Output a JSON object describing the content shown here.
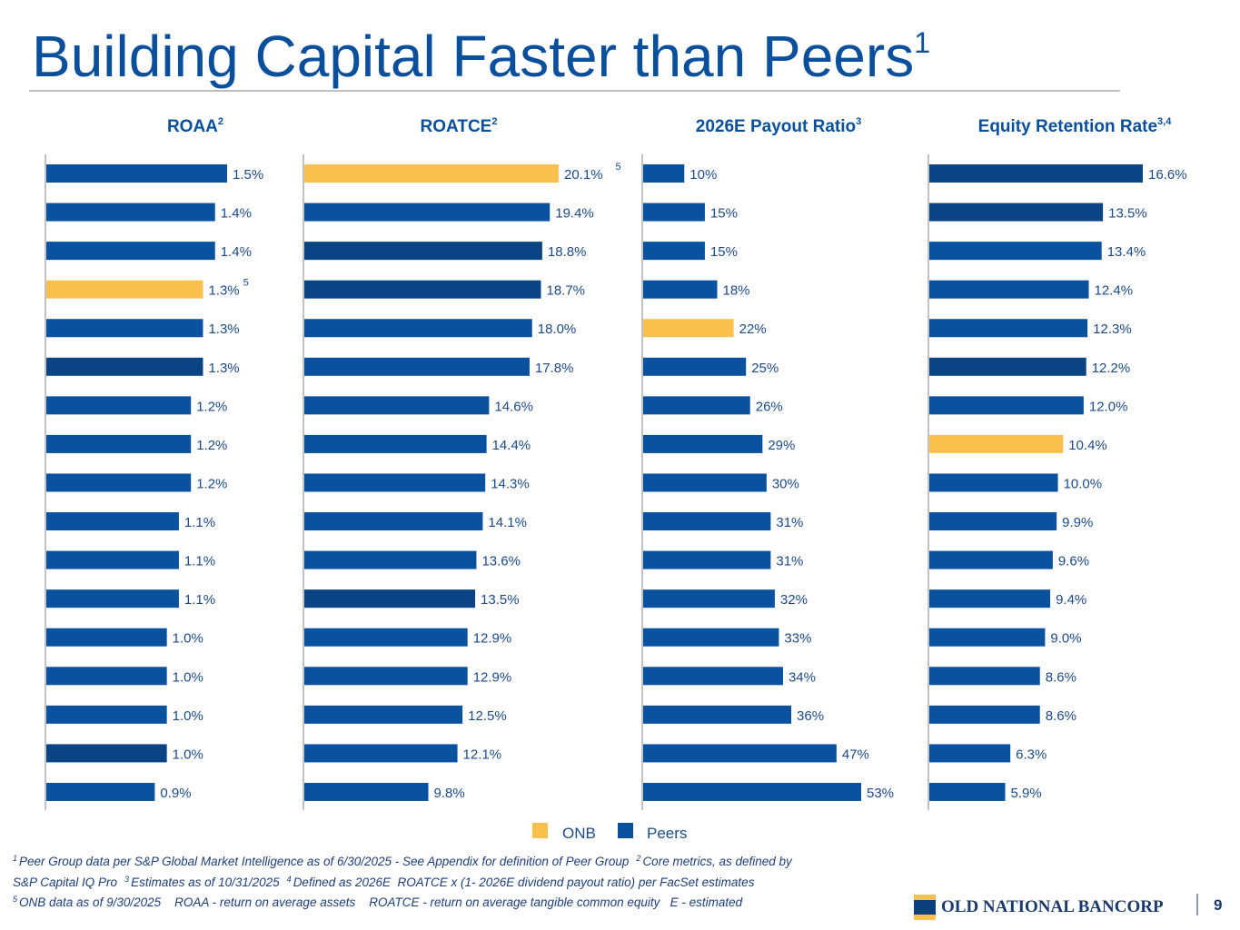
{
  "header": {
    "title": "Building Capital Faster than Peers",
    "title_note": "1"
  },
  "chart_data": [
    {
      "type": "bar",
      "orientation": "horizontal",
      "title": "ROAA",
      "title_note": "2",
      "values": [
        1.5,
        1.4,
        1.4,
        1.3,
        1.3,
        1.3,
        1.2,
        1.2,
        1.2,
        1.1,
        1.1,
        1.1,
        1.0,
        1.0,
        1.0,
        1.0,
        0.9
      ],
      "value_labels": [
        "1.5%",
        "1.4%",
        "1.4%",
        "1.3%",
        "1.3%",
        "1.3%",
        "1.2%",
        "1.2%",
        "1.2%",
        "1.1%",
        "1.1%",
        "1.1%",
        "1.0%",
        "1.0%",
        "1.0%",
        "1.0%",
        "0.9%"
      ],
      "colors": [
        "#0a52a0",
        "#0a52a0",
        "#0a52a0",
        "#f9c04e",
        "#0a52a0",
        "#0a4484",
        "#0a52a0",
        "#0a52a0",
        "#0a52a0",
        "#0a52a0",
        "#0a52a0",
        "#0a52a0",
        "#0a52a0",
        "#0a52a0",
        "#0a52a0",
        "#0a4484",
        "#0a52a0"
      ],
      "annotation": {
        "index": 3,
        "text": "5"
      }
    },
    {
      "type": "bar",
      "orientation": "horizontal",
      "title": "ROATCE",
      "title_note": "2",
      "values": [
        20.1,
        19.4,
        18.8,
        18.7,
        18.0,
        17.8,
        14.6,
        14.4,
        14.3,
        14.1,
        13.6,
        13.5,
        12.9,
        12.9,
        12.5,
        12.1,
        9.8
      ],
      "value_labels": [
        "20.1%",
        "19.4%",
        "18.8%",
        "18.7%",
        "18.0%",
        "17.8%",
        "14.6%",
        "14.4%",
        "14.3%",
        "14.1%",
        "13.6%",
        "13.5%",
        "12.9%",
        "12.9%",
        "12.5%",
        "12.1%",
        "9.8%"
      ],
      "colors": [
        "#f9c04e",
        "#0a52a0",
        "#0a4484",
        "#0a4484",
        "#0a52a0",
        "#0a52a0",
        "#0a52a0",
        "#0a52a0",
        "#0a52a0",
        "#0a52a0",
        "#0a52a0",
        "#0a4484",
        "#0a52a0",
        "#0a52a0",
        "#0a52a0",
        "#0a52a0",
        "#0a52a0"
      ],
      "annotation": {
        "index": 0,
        "text": "5"
      }
    },
    {
      "type": "bar",
      "orientation": "horizontal",
      "title": "2026E Payout Ratio",
      "title_note": "3",
      "values": [
        10,
        15,
        15,
        18,
        22,
        25,
        26,
        29,
        30,
        31,
        31,
        32,
        33,
        34,
        36,
        47,
        53
      ],
      "value_labels": [
        "10%",
        "15%",
        "15%",
        "18%",
        "22%",
        "25%",
        "26%",
        "29%",
        "30%",
        "31%",
        "31%",
        "32%",
        "33%",
        "34%",
        "36%",
        "47%",
        "53%"
      ],
      "colors": [
        "#0a52a0",
        "#0a52a0",
        "#0a52a0",
        "#0a52a0",
        "#f9c04e",
        "#0a52a0",
        "#0a52a0",
        "#0a52a0",
        "#0a52a0",
        "#0a52a0",
        "#0a52a0",
        "#0a52a0",
        "#0a52a0",
        "#0a52a0",
        "#0a52a0",
        "#0a52a0",
        "#0a52a0"
      ]
    },
    {
      "type": "bar",
      "orientation": "horizontal",
      "title": "Equity Retention Rate",
      "title_note": "3,4",
      "values": [
        16.6,
        13.5,
        13.4,
        12.4,
        12.3,
        12.2,
        12.0,
        10.4,
        10.0,
        9.9,
        9.6,
        9.4,
        9.0,
        8.6,
        8.6,
        6.3,
        5.9
      ],
      "value_labels": [
        "16.6%",
        "13.5%",
        "13.4%",
        "12.4%",
        "12.3%",
        "12.2%",
        "12.0%",
        "10.4%",
        "10.0%",
        "9.9%",
        "9.6%",
        "9.4%",
        "9.0%",
        "8.6%",
        "8.6%",
        "6.3%",
        "5.9%"
      ],
      "colors": [
        "#0a4484",
        "#0a4484",
        "#0a52a0",
        "#0a52a0",
        "#0a52a0",
        "#0a4484",
        "#0a52a0",
        "#f9c04e",
        "#0a52a0",
        "#0a52a0",
        "#0a52a0",
        "#0a52a0",
        "#0a52a0",
        "#0a52a0",
        "#0a52a0",
        "#0a52a0",
        "#0a52a0"
      ]
    }
  ],
  "legend": [
    {
      "name": "ONB",
      "color": "#f9c04e"
    },
    {
      "name": "Peers",
      "color": "#0a52a0"
    }
  ],
  "footnotes": [
    [
      {
        "sup": "1",
        "text": "Peer Group data per S&P Global Market Intelligence as of 6/30/2025 - See Appendix for definition of Peer Group"
      },
      {
        "sup": "2",
        "text": "Core metrics, as defined by"
      }
    ],
    [
      {
        "text": "S&P Capital IQ Pro"
      },
      {
        "sup": "3",
        "text": "Estimates as of 10/31/2025"
      },
      {
        "sup": "4",
        "text": "Defined as 2026E  ROATCE x (1- 2026E dividend payout ratio) per FacSet estimates"
      }
    ],
    [
      {
        "sup": "5",
        "text": "ONB data as of 9/30/2025    ROAA - return on average assets    ROATCE - return on average tangible common equity   E - estimated"
      }
    ]
  ],
  "footer": {
    "logo": "OLD NATIONAL BANCORP",
    "page": "9"
  }
}
